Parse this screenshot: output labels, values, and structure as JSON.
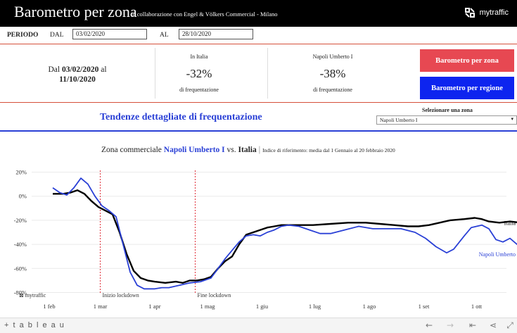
{
  "header": {
    "title": "Barometro per zona",
    "subtitle": "in collaborazione con Engel & Völkers Commercial - Milano",
    "brand": "mytraffic"
  },
  "period": {
    "label": "PERIODO",
    "from_label": "DAL",
    "from_value": "03/02/2020",
    "to_label": "AL",
    "to_value": "28/10/2020"
  },
  "kpis": {
    "date_prefix": "Dal",
    "date_start": "03/02/2020",
    "date_mid": "al",
    "date_end": "11/10/2020",
    "italia": {
      "name": "In Italia",
      "value": "-32%",
      "caption": "di frequentazione"
    },
    "zone": {
      "name": "Napoli Umberto I",
      "value": "-38%",
      "caption": "di frequentazione"
    }
  },
  "buttons": {
    "zone": "Barometro per zona",
    "region": "Barometro per regione"
  },
  "section": {
    "title": "Tendenze dettagliate di frequentazione",
    "select_label": "Selezionare una zona",
    "select_value": "Napoli Umberto I"
  },
  "chart_head": {
    "prefix": "Zona commerciale",
    "zone": "Napoli Umberto I",
    "vs": "vs.",
    "country": "Italia",
    "sep": "|",
    "note": "Indice di riferimento: media dal 1 Gennaio al 20 febbraio 2020"
  },
  "chart_data": {
    "type": "line",
    "y_ticks": [
      "20%",
      "0%",
      "-20%",
      "-40%",
      "-60%",
      "-80%"
    ],
    "ylim": [
      -85,
      25
    ],
    "x_ticks": [
      "1 feb",
      "1 mar",
      "1 apr",
      "1 mag",
      "1 giu",
      "1 lug",
      "1 ago",
      "1 set",
      "1 ott"
    ],
    "annotations": [
      {
        "label": "Inizio lockdown",
        "day": 39
      },
      {
        "label": "Fine lockdown",
        "day": 93
      }
    ],
    "series": [
      {
        "name": "Italia",
        "color": "#000000",
        "points": [
          [
            2,
            2
          ],
          [
            8,
            2
          ],
          [
            12,
            3
          ],
          [
            16,
            5
          ],
          [
            20,
            2
          ],
          [
            24,
            -4
          ],
          [
            28,
            -9
          ],
          [
            32,
            -12
          ],
          [
            36,
            -15
          ],
          [
            40,
            -30
          ],
          [
            44,
            -48
          ],
          [
            48,
            -62
          ],
          [
            52,
            -68
          ],
          [
            56,
            -70
          ],
          [
            60,
            -71
          ],
          [
            66,
            -72
          ],
          [
            72,
            -71
          ],
          [
            76,
            -72
          ],
          [
            80,
            -70
          ],
          [
            84,
            -70
          ],
          [
            88,
            -69
          ],
          [
            92,
            -67
          ],
          [
            96,
            -60
          ],
          [
            100,
            -54
          ],
          [
            104,
            -50
          ],
          [
            108,
            -40
          ],
          [
            112,
            -32
          ],
          [
            116,
            -30
          ],
          [
            120,
            -28
          ],
          [
            124,
            -26
          ],
          [
            128,
            -25
          ],
          [
            132,
            -24
          ],
          [
            140,
            -24
          ],
          [
            150,
            -24
          ],
          [
            160,
            -23
          ],
          [
            170,
            -22
          ],
          [
            180,
            -22
          ],
          [
            188,
            -23
          ],
          [
            196,
            -24
          ],
          [
            204,
            -25
          ],
          [
            210,
            -25
          ],
          [
            216,
            -24
          ],
          [
            222,
            -22
          ],
          [
            228,
            -20
          ],
          [
            236,
            -19
          ],
          [
            242,
            -18
          ],
          [
            246,
            -19
          ],
          [
            250,
            -21
          ],
          [
            256,
            -22
          ],
          [
            262,
            -21
          ],
          [
            268,
            -22
          ]
        ]
      },
      {
        "name": "Napoli Umberto",
        "color": "#2a40d6",
        "points": [
          [
            2,
            7
          ],
          [
            6,
            3
          ],
          [
            10,
            1
          ],
          [
            14,
            7
          ],
          [
            18,
            15
          ],
          [
            22,
            10
          ],
          [
            26,
            0
          ],
          [
            30,
            -8
          ],
          [
            34,
            -12
          ],
          [
            38,
            -17
          ],
          [
            42,
            -40
          ],
          [
            46,
            -63
          ],
          [
            50,
            -74
          ],
          [
            54,
            -77
          ],
          [
            60,
            -77
          ],
          [
            64,
            -76
          ],
          [
            68,
            -76
          ],
          [
            74,
            -74
          ],
          [
            80,
            -72
          ],
          [
            86,
            -71
          ],
          [
            92,
            -68
          ],
          [
            96,
            -60
          ],
          [
            100,
            -52
          ],
          [
            104,
            -45
          ],
          [
            108,
            -38
          ],
          [
            112,
            -33
          ],
          [
            116,
            -32
          ],
          [
            120,
            -33
          ],
          [
            124,
            -30
          ],
          [
            128,
            -28
          ],
          [
            132,
            -25
          ],
          [
            136,
            -24
          ],
          [
            142,
            -25
          ],
          [
            148,
            -28
          ],
          [
            154,
            -31
          ],
          [
            160,
            -31
          ],
          [
            168,
            -28
          ],
          [
            176,
            -25
          ],
          [
            184,
            -27
          ],
          [
            192,
            -27
          ],
          [
            200,
            -27
          ],
          [
            208,
            -30
          ],
          [
            214,
            -35
          ],
          [
            220,
            -42
          ],
          [
            226,
            -47
          ],
          [
            230,
            -44
          ],
          [
            236,
            -33
          ],
          [
            240,
            -26
          ],
          [
            246,
            -24
          ],
          [
            250,
            -27
          ],
          [
            254,
            -36
          ],
          [
            258,
            -38
          ],
          [
            262,
            -35
          ],
          [
            266,
            -40
          ],
          [
            270,
            -43
          ]
        ]
      }
    ]
  },
  "brand_small": "mytraffic",
  "toolbar": {
    "logo": "+ t a b l e a u"
  }
}
